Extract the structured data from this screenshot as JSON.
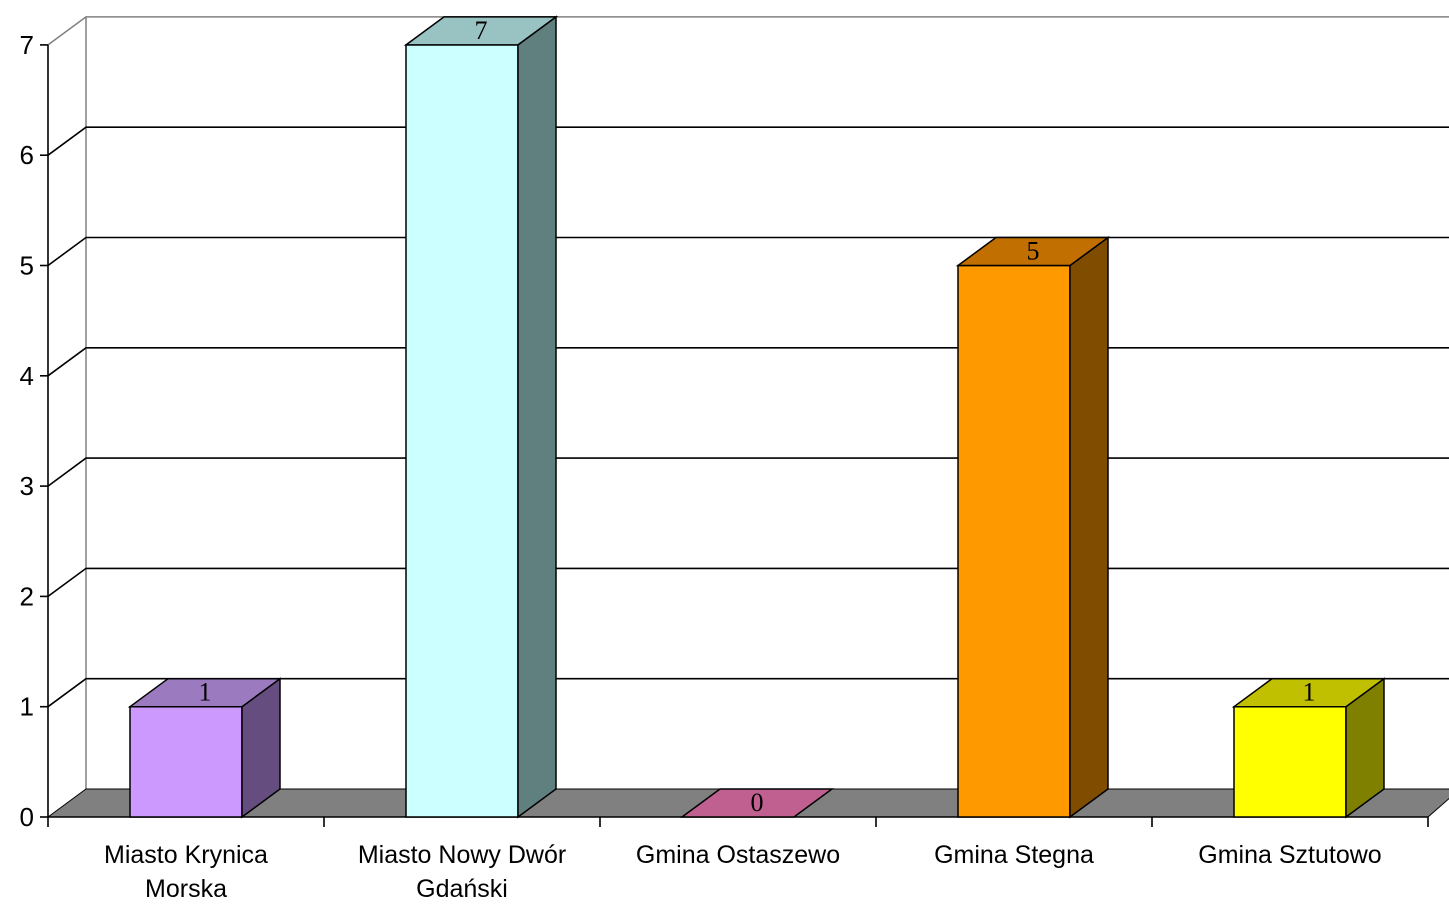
{
  "chart_data": {
    "type": "bar",
    "title": "",
    "xlabel": "",
    "ylabel": "",
    "categories": [
      "Miasto Krynica Morska",
      "Miasto Nowy Dwór Gdański",
      "Gmina Ostaszewo",
      "Gmina Stegna",
      "Gmina Sztutowo"
    ],
    "category_lines": [
      [
        "Miasto Krynica",
        "Morska"
      ],
      [
        "Miasto Nowy Dwór",
        "Gdański"
      ],
      [
        "Gmina Ostaszewo"
      ],
      [
        "Gmina Stegna"
      ],
      [
        "Gmina Sztutowo"
      ]
    ],
    "values": [
      1,
      7,
      0,
      5,
      1
    ],
    "data_labels": [
      "1",
      "7",
      "0",
      "5",
      "1"
    ],
    "ylim": [
      0,
      7
    ],
    "yticks": [
      "0",
      "1",
      "2",
      "3",
      "4",
      "5",
      "6",
      "7"
    ],
    "grid": true,
    "legend": "none",
    "style": "3d",
    "colors": {
      "front": [
        "#cc99ff",
        "#ccffff",
        "#cc6699",
        "#ff9900",
        "#ffff00"
      ],
      "top": [
        "#9b7ac0",
        "#99c2c2",
        "#c06090",
        "#c06f00",
        "#c0c000"
      ],
      "side": [
        "#664d80",
        "#608080",
        "#663350",
        "#804c00",
        "#808000"
      ],
      "floor": "#808080"
    }
  }
}
